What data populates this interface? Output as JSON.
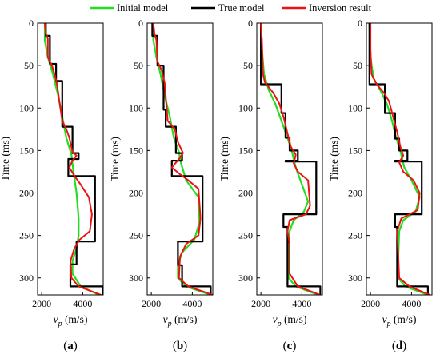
{
  "legend": {
    "items": [
      {
        "label": "Initial model",
        "color": "#22dd22"
      },
      {
        "label": "True model",
        "color": "#000000"
      },
      {
        "label": "Inversion result",
        "color": "#ee1111"
      }
    ]
  },
  "colors": {
    "initial": "#22dd22",
    "true": "#000000",
    "inversion": "#ee1111",
    "axis": "#000000"
  },
  "y_axis_label": "Time (ms)",
  "x_axis_label": {
    "symbol": "v",
    "subscript": "p",
    "unit": " (m/s)"
  },
  "chart_data": [
    {
      "type": "line",
      "panel": "(a)",
      "xlim": [
        1800,
        5000
      ],
      "ylim": [
        0,
        320
      ],
      "y_reversed": true,
      "xticks": [
        2000,
        4000
      ],
      "yticks": [
        0,
        50,
        100,
        150,
        200,
        250,
        300
      ],
      "series": [
        {
          "name": "True model",
          "points": [
            [
              2200,
              0
            ],
            [
              2200,
              15
            ],
            [
              2400,
              15
            ],
            [
              2400,
              48
            ],
            [
              2700,
              48
            ],
            [
              2700,
              68
            ],
            [
              3000,
              68
            ],
            [
              3000,
              122
            ],
            [
              3500,
              122
            ],
            [
              3500,
              153
            ],
            [
              3800,
              153
            ],
            [
              3800,
              160
            ],
            [
              3300,
              160
            ],
            [
              3300,
              180
            ],
            [
              4600,
              180
            ],
            [
              4600,
              257
            ],
            [
              3700,
              257
            ],
            [
              3700,
              284
            ],
            [
              3400,
              284
            ],
            [
              3400,
              310
            ],
            [
              5000,
              310
            ],
            [
              5000,
              320
            ]
          ]
        },
        {
          "name": "Initial model",
          "points": [
            [
              2150,
              0
            ],
            [
              2150,
              20
            ],
            [
              2300,
              40
            ],
            [
              2550,
              60
            ],
            [
              2800,
              85
            ],
            [
              3000,
              110
            ],
            [
              3200,
              135
            ],
            [
              3450,
              155
            ],
            [
              3550,
              175
            ],
            [
              3700,
              200
            ],
            [
              3800,
              230
            ],
            [
              3800,
              250
            ],
            [
              3700,
              265
            ],
            [
              3500,
              280
            ],
            [
              3500,
              295
            ],
            [
              3900,
              310
            ],
            [
              4800,
              320
            ]
          ]
        },
        {
          "name": "Inversion result",
          "points": [
            [
              2150,
              0
            ],
            [
              2200,
              12
            ],
            [
              2300,
              18
            ],
            [
              2300,
              40
            ],
            [
              2500,
              50
            ],
            [
              2650,
              62
            ],
            [
              2750,
              72
            ],
            [
              2850,
              90
            ],
            [
              3000,
              115
            ],
            [
              3200,
              125
            ],
            [
              3350,
              135
            ],
            [
              3500,
              152
            ],
            [
              3700,
              156
            ],
            [
              3500,
              162
            ],
            [
              3350,
              170
            ],
            [
              3600,
              180
            ],
            [
              3900,
              190
            ],
            [
              4300,
              205
            ],
            [
              4450,
              225
            ],
            [
              4350,
              245
            ],
            [
              3850,
              255
            ],
            [
              3600,
              265
            ],
            [
              3400,
              280
            ],
            [
              3450,
              300
            ],
            [
              3800,
              310
            ],
            [
              4900,
              320
            ]
          ]
        }
      ]
    },
    {
      "type": "line",
      "panel": "(b)",
      "xlim": [
        1800,
        5000
      ],
      "ylim": [
        0,
        320
      ],
      "y_reversed": true,
      "xticks": [
        2000,
        4000
      ],
      "yticks": [
        0,
        50,
        100,
        150,
        200,
        250,
        300
      ],
      "series": [
        {
          "name": "True model",
          "points": [
            [
              2050,
              0
            ],
            [
              2050,
              15
            ],
            [
              2300,
              15
            ],
            [
              2300,
              50
            ],
            [
              2600,
              50
            ],
            [
              2600,
              102
            ],
            [
              2700,
              102
            ],
            [
              2700,
              122
            ],
            [
              3200,
              122
            ],
            [
              3200,
              153
            ],
            [
              3500,
              153
            ],
            [
              3500,
              162
            ],
            [
              3000,
              162
            ],
            [
              3000,
              180
            ],
            [
              4500,
              180
            ],
            [
              4500,
              257
            ],
            [
              3300,
              257
            ],
            [
              3300,
              285
            ],
            [
              3500,
              285
            ],
            [
              3500,
              310
            ],
            [
              4900,
              310
            ],
            [
              4900,
              320
            ]
          ]
        },
        {
          "name": "Initial model",
          "points": [
            [
              2050,
              0
            ],
            [
              2100,
              20
            ],
            [
              2250,
              40
            ],
            [
              2450,
              60
            ],
            [
              2650,
              85
            ],
            [
              2900,
              110
            ],
            [
              3100,
              135
            ],
            [
              3350,
              152
            ],
            [
              3450,
              165
            ],
            [
              3700,
              185
            ],
            [
              4300,
              205
            ],
            [
              4350,
              235
            ],
            [
              4100,
              255
            ],
            [
              3500,
              270
            ],
            [
              3300,
              285
            ],
            [
              3300,
              300
            ],
            [
              3700,
              310
            ],
            [
              4900,
              320
            ]
          ]
        },
        {
          "name": "Inversion result",
          "points": [
            [
              2100,
              0
            ],
            [
              2150,
              12
            ],
            [
              2250,
              20
            ],
            [
              2300,
              45
            ],
            [
              2500,
              55
            ],
            [
              2650,
              70
            ],
            [
              2750,
              100
            ],
            [
              2800,
              115
            ],
            [
              3150,
              125
            ],
            [
              3300,
              140
            ],
            [
              3550,
              153
            ],
            [
              3350,
              160
            ],
            [
              3000,
              170
            ],
            [
              3400,
              178
            ],
            [
              3800,
              185
            ],
            [
              4300,
              195
            ],
            [
              4400,
              230
            ],
            [
              4300,
              250
            ],
            [
              3700,
              260
            ],
            [
              3400,
              275
            ],
            [
              3350,
              300
            ],
            [
              3800,
              310
            ],
            [
              5000,
              320
            ]
          ]
        }
      ]
    },
    {
      "type": "line",
      "panel": "(c)",
      "xlim": [
        1800,
        5000
      ],
      "ylim": [
        0,
        320
      ],
      "y_reversed": true,
      "xticks": [
        2000,
        4000
      ],
      "yticks": [
        0,
        50,
        100,
        150,
        200,
        250,
        300
      ],
      "series": [
        {
          "name": "True model",
          "points": [
            [
              2000,
              0
            ],
            [
              2000,
              28
            ],
            [
              2000,
              28
            ],
            [
              2000,
              72
            ],
            [
              3000,
              72
            ],
            [
              3000,
              106
            ],
            [
              3200,
              106
            ],
            [
              3200,
              135
            ],
            [
              3400,
              135
            ],
            [
              3400,
              150
            ],
            [
              3800,
              150
            ],
            [
              3800,
              162
            ],
            [
              3200,
              162
            ],
            [
              3200,
              163
            ],
            [
              4700,
              163
            ],
            [
              4700,
              225
            ],
            [
              3100,
              225
            ],
            [
              3100,
              240
            ],
            [
              3300,
              240
            ],
            [
              3300,
              310
            ],
            [
              4900,
              310
            ],
            [
              4900,
              320
            ]
          ]
        },
        {
          "name": "Initial model",
          "points": [
            [
              2000,
              0
            ],
            [
              2050,
              30
            ],
            [
              2150,
              60
            ],
            [
              2400,
              80
            ],
            [
              2700,
              95
            ],
            [
              3000,
              115
            ],
            [
              3300,
              135
            ],
            [
              3500,
              150
            ],
            [
              3700,
              170
            ],
            [
              4000,
              190
            ],
            [
              4300,
              210
            ],
            [
              4100,
              222
            ],
            [
              3600,
              232
            ],
            [
              3400,
              245
            ],
            [
              3350,
              280
            ],
            [
              3350,
              300
            ],
            [
              3700,
              310
            ],
            [
              4800,
              320
            ]
          ]
        },
        {
          "name": "Inversion result",
          "points": [
            [
              2000,
              0
            ],
            [
              2050,
              20
            ],
            [
              2100,
              60
            ],
            [
              2200,
              70
            ],
            [
              2600,
              82
            ],
            [
              2900,
              95
            ],
            [
              3100,
              110
            ],
            [
              3300,
              130
            ],
            [
              3450,
              145
            ],
            [
              3700,
              155
            ],
            [
              3600,
              165
            ],
            [
              3800,
              175
            ],
            [
              4300,
              185
            ],
            [
              4400,
              215
            ],
            [
              4200,
              225
            ],
            [
              3400,
              232
            ],
            [
              3300,
              245
            ],
            [
              3400,
              260
            ],
            [
              3400,
              295
            ],
            [
              3800,
              310
            ],
            [
              4900,
              320
            ]
          ]
        }
      ]
    },
    {
      "type": "line",
      "panel": "(d)",
      "xlim": [
        1800,
        5000
      ],
      "ylim": [
        0,
        320
      ],
      "y_reversed": true,
      "xticks": [
        2000,
        4000
      ],
      "yticks": [
        0,
        50,
        100,
        150,
        200,
        250,
        300
      ],
      "series": [
        {
          "name": "True model",
          "points": [
            [
              1950,
              0
            ],
            [
              1950,
              28
            ],
            [
              1950,
              28
            ],
            [
              1950,
              72
            ],
            [
              2700,
              72
            ],
            [
              2700,
              106
            ],
            [
              3200,
              106
            ],
            [
              3200,
              136
            ],
            [
              3400,
              136
            ],
            [
              3400,
              150
            ],
            [
              3800,
              150
            ],
            [
              3800,
              162
            ],
            [
              3200,
              162
            ],
            [
              3200,
              163
            ],
            [
              4500,
              163
            ],
            [
              4500,
              225
            ],
            [
              3200,
              225
            ],
            [
              3200,
              240
            ],
            [
              3300,
              240
            ],
            [
              3300,
              310
            ],
            [
              4800,
              310
            ],
            [
              4800,
              320
            ]
          ]
        },
        {
          "name": "Initial model",
          "points": [
            [
              1950,
              0
            ],
            [
              2000,
              40
            ],
            [
              2150,
              65
            ],
            [
              2500,
              80
            ],
            [
              2800,
              95
            ],
            [
              3050,
              115
            ],
            [
              3250,
              135
            ],
            [
              3450,
              150
            ],
            [
              3650,
              170
            ],
            [
              4000,
              185
            ],
            [
              4400,
              205
            ],
            [
              4200,
              222
            ],
            [
              3600,
              232
            ],
            [
              3400,
              245
            ],
            [
              3350,
              280
            ],
            [
              3350,
              300
            ],
            [
              3700,
              310
            ],
            [
              4800,
              320
            ]
          ]
        },
        {
          "name": "Inversion result",
          "points": [
            [
              2000,
              0
            ],
            [
              2000,
              30
            ],
            [
              2050,
              60
            ],
            [
              2300,
              72
            ],
            [
              2650,
              82
            ],
            [
              2900,
              92
            ],
            [
              3100,
              110
            ],
            [
              3300,
              128
            ],
            [
              3450,
              145
            ],
            [
              3600,
              156
            ],
            [
              3400,
              164
            ],
            [
              3600,
              175
            ],
            [
              4100,
              185
            ],
            [
              4400,
              200
            ],
            [
              4300,
              220
            ],
            [
              3500,
              230
            ],
            [
              3300,
              245
            ],
            [
              3350,
              270
            ],
            [
              3400,
              300
            ],
            [
              3900,
              310
            ],
            [
              4900,
              320
            ]
          ]
        }
      ]
    }
  ]
}
